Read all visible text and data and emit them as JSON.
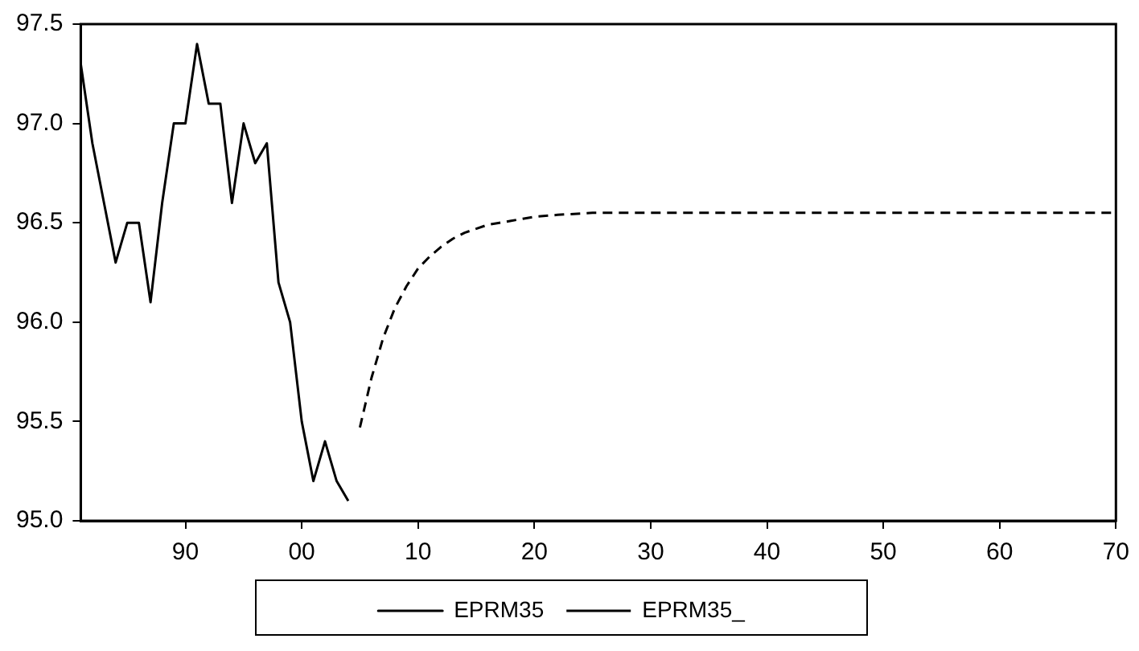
{
  "chart_data": {
    "type": "line",
    "xlim": [
      1981,
      2070
    ],
    "xticks": [
      {
        "value": 1990,
        "label": "90"
      },
      {
        "value": 2000,
        "label": "00"
      },
      {
        "value": 2010,
        "label": "10"
      },
      {
        "value": 2020,
        "label": "20"
      },
      {
        "value": 2030,
        "label": "30"
      },
      {
        "value": 2040,
        "label": "40"
      },
      {
        "value": 2050,
        "label": "50"
      },
      {
        "value": 2060,
        "label": "60"
      },
      {
        "value": 2070,
        "label": "70"
      }
    ],
    "ylim": [
      95.0,
      97.5
    ],
    "yticks": [
      {
        "value": 95.0,
        "label": "95.0"
      },
      {
        "value": 95.5,
        "label": "95.5"
      },
      {
        "value": 96.0,
        "label": "96.0"
      },
      {
        "value": 96.5,
        "label": "96.5"
      },
      {
        "value": 97.0,
        "label": "97.0"
      },
      {
        "value": 97.5,
        "label": "97.5"
      }
    ],
    "grid": false,
    "legend": "bottom",
    "marker": "none",
    "series": [
      {
        "name": "EPRM35",
        "color": "#000000",
        "line_style": "solid",
        "x": [
          1981,
          1982,
          1983,
          1984,
          1985,
          1986,
          1987,
          1988,
          1989,
          1990,
          1991,
          1992,
          1993,
          1994,
          1995,
          1996,
          1997,
          1998,
          1999,
          2000,
          2001,
          2002,
          2003,
          2004
        ],
        "values": [
          97.3,
          96.9,
          96.6,
          96.3,
          96.5,
          96.5,
          96.1,
          96.6,
          97.0,
          97.0,
          97.4,
          97.1,
          97.1,
          96.6,
          97.0,
          96.8,
          96.9,
          96.2,
          96.0,
          95.5,
          95.2,
          95.4,
          95.2,
          95.1
        ]
      },
      {
        "name": "EPRM35_",
        "color": "#000000",
        "line_style": "dashed",
        "x": [
          2005,
          2006,
          2007,
          2008,
          2009,
          2010,
          2011,
          2012,
          2013,
          2014,
          2015,
          2016,
          2017,
          2018,
          2019,
          2020,
          2022,
          2025,
          2030,
          2040,
          2050,
          2060,
          2070
        ],
        "values": [
          95.47,
          95.72,
          95.92,
          96.07,
          96.18,
          96.27,
          96.33,
          96.38,
          96.42,
          96.45,
          96.47,
          96.49,
          96.5,
          96.51,
          96.52,
          96.53,
          96.54,
          96.55,
          96.55,
          96.55,
          96.55,
          96.55,
          96.55
        ]
      }
    ]
  }
}
